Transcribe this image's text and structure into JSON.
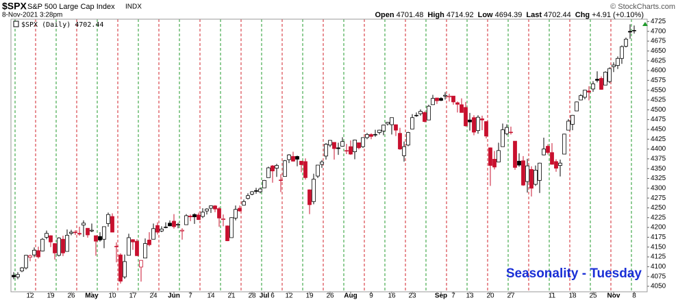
{
  "header": {
    "symbol": "$SPX",
    "name": "S&P 500 Large Cap Index",
    "exchange": "INDX",
    "date": "8-Nov-2021 3:28pm",
    "copyright": "© StockCharts.com",
    "stats": [
      {
        "label": "Open",
        "value": 4701.48
      },
      {
        "label": "High",
        "value": 4714.92
      },
      {
        "label": "Low",
        "value": 4694.39
      },
      {
        "label": "Last",
        "value": 4702.44
      },
      {
        "label": "Chg",
        "value": "+4.91 (+0.10%)"
      }
    ]
  },
  "chart_data": {
    "type": "candlestick",
    "legend": "$SPX (Daily) 4702.44",
    "annotation": "Seasonality - Tuesday",
    "up_color": "#000000",
    "down_color": "#c8102e",
    "ylim": [
      4036,
      4731
    ],
    "yticks": [
      4050,
      4075,
      4100,
      4125,
      4150,
      4175,
      4200,
      4225,
      4250,
      4275,
      4300,
      4325,
      4350,
      4375,
      4400,
      4425,
      4450,
      4475,
      4500,
      4525,
      4550,
      4575,
      4600,
      4625,
      4650,
      4675,
      4700,
      4725
    ],
    "categories": [
      null,
      null,
      null,
      null,
      "12",
      null,
      null,
      null,
      null,
      "19",
      null,
      null,
      null,
      null,
      "26",
      null,
      null,
      null,
      null,
      "May",
      null,
      null,
      null,
      null,
      "10",
      null,
      null,
      null,
      null,
      "17",
      null,
      null,
      null,
      null,
      "24",
      null,
      null,
      null,
      null,
      "Jun",
      null,
      null,
      null,
      "7",
      null,
      null,
      null,
      null,
      "14",
      null,
      null,
      null,
      null,
      "21",
      null,
      null,
      null,
      null,
      "28",
      null,
      null,
      "Jul",
      null,
      "6",
      null,
      null,
      null,
      "12",
      null,
      null,
      null,
      null,
      "19",
      null,
      null,
      null,
      null,
      "26",
      null,
      null,
      null,
      null,
      "Aug",
      null,
      null,
      null,
      null,
      "9",
      null,
      null,
      null,
      null,
      "16",
      null,
      null,
      null,
      null,
      "23",
      null,
      null,
      null,
      null,
      null,
      null,
      "Sep",
      null,
      null,
      "7",
      null,
      null,
      null,
      "13",
      null,
      null,
      null,
      null,
      "20",
      null,
      null,
      null,
      null,
      "27",
      null,
      null,
      null,
      null,
      null,
      null,
      null,
      null,
      null,
      "11",
      null,
      null,
      null,
      null,
      "18",
      null,
      null,
      null,
      null,
      "25",
      null,
      null,
      null,
      null,
      "Nov",
      null,
      null,
      null,
      null,
      "8"
    ],
    "ohlc": [
      [
        4078,
        4086,
        4068,
        4074
      ],
      [
        4074,
        4086,
        4068,
        4080
      ],
      [
        4089,
        4099,
        4086,
        4097
      ],
      [
        4097,
        4130,
        4093,
        4129
      ],
      [
        4124,
        4131,
        4114,
        4128
      ],
      [
        4130,
        4149,
        4124,
        4142
      ],
      [
        4141,
        4151,
        4121,
        4125
      ],
      [
        4140,
        4173,
        4139,
        4170
      ],
      [
        4175,
        4192,
        4170,
        4185
      ],
      [
        4179,
        4180,
        4150,
        4163
      ],
      [
        4159,
        4160,
        4118,
        4135
      ],
      [
        4129,
        4175,
        4126,
        4173
      ],
      [
        4170,
        4179,
        4127,
        4135
      ],
      [
        4139,
        4195,
        4139,
        4180
      ],
      [
        4185,
        4194,
        4180,
        4188
      ],
      [
        4188,
        4193,
        4181,
        4187
      ],
      [
        4185,
        4202,
        4179,
        4183
      ],
      [
        4206,
        4218,
        4176,
        4211
      ],
      [
        4198,
        4198,
        4174,
        4181
      ],
      [
        4191,
        4210,
        4188,
        4193
      ],
      [
        4179,
        4179,
        4128,
        4165
      ],
      [
        4177,
        4188,
        4164,
        4168
      ],
      [
        4170,
        4202,
        4147,
        4202
      ],
      [
        4210,
        4238,
        4202,
        4233
      ],
      [
        4228,
        4236,
        4188,
        4188
      ],
      [
        4151,
        4162,
        4111,
        4152
      ],
      [
        4130,
        4134,
        4057,
        4063
      ],
      [
        4074,
        4131,
        4069,
        4113
      ],
      [
        4129,
        4184,
        4129,
        4174
      ],
      [
        4169,
        4170,
        4143,
        4163
      ],
      [
        4165,
        4170,
        4127,
        4128
      ],
      [
        4099,
        4117,
        4062,
        4116
      ],
      [
        4122,
        4172,
        4122,
        4159
      ],
      [
        4168,
        4188,
        4152,
        4156
      ],
      [
        4170,
        4210,
        4170,
        4197
      ],
      [
        4205,
        4213,
        4182,
        4188
      ],
      [
        4191,
        4203,
        4188,
        4196
      ],
      [
        4201,
        4213,
        4198,
        4201
      ],
      [
        4211,
        4218,
        4203,
        4204
      ],
      [
        4216,
        4234,
        4197,
        4202
      ],
      [
        4206,
        4212,
        4198,
        4208
      ],
      [
        4191,
        4198,
        4169,
        4193
      ],
      [
        4207,
        4234,
        4207,
        4230
      ],
      [
        4229,
        4233,
        4216,
        4227
      ],
      [
        4233,
        4236,
        4209,
        4227
      ],
      [
        4232,
        4238,
        4219,
        4220
      ],
      [
        4228,
        4249,
        4224,
        4239
      ],
      [
        4242,
        4249,
        4233,
        4247
      ],
      [
        4249,
        4256,
        4237,
        4255
      ],
      [
        4255,
        4257,
        4239,
        4247
      ],
      [
        4248,
        4252,
        4202,
        4224
      ],
      [
        4220,
        4233,
        4203,
        4222
      ],
      [
        4204,
        4205,
        4165,
        4166
      ],
      [
        4174,
        4226,
        4174,
        4225
      ],
      [
        4224,
        4256,
        4218,
        4246
      ],
      [
        4249,
        4256,
        4240,
        4242
      ],
      [
        4257,
        4271,
        4257,
        4266
      ],
      [
        4274,
        4287,
        4271,
        4281
      ],
      [
        4285,
        4293,
        4282,
        4291
      ],
      [
        4294,
        4301,
        4286,
        4292
      ],
      [
        4291,
        4302,
        4287,
        4298
      ],
      [
        4301,
        4321,
        4301,
        4320
      ],
      [
        4327,
        4355,
        4327,
        4352
      ],
      [
        4357,
        4359,
        4314,
        4344
      ],
      [
        4351,
        4362,
        4329,
        4358
      ],
      [
        4321,
        4336,
        4290,
        4321
      ],
      [
        4330,
        4372,
        4330,
        4370
      ],
      [
        4373,
        4387,
        4364,
        4385
      ],
      [
        4381,
        4393,
        4368,
        4369
      ],
      [
        4381,
        4383,
        4356,
        4374
      ],
      [
        4369,
        4369,
        4341,
        4360
      ],
      [
        4368,
        4376,
        4322,
        4327
      ],
      [
        4296,
        4297,
        4234,
        4258
      ],
      [
        4266,
        4337,
        4259,
        4323
      ],
      [
        4331,
        4359,
        4326,
        4359
      ],
      [
        4361,
        4372,
        4352,
        4367
      ],
      [
        4382,
        4415,
        4373,
        4412
      ],
      [
        4410,
        4423,
        4405,
        4422
      ],
      [
        4417,
        4416,
        4373,
        4401
      ],
      [
        4403,
        4416,
        4385,
        4401
      ],
      [
        4407,
        4430,
        4406,
        4419
      ],
      [
        4396,
        4413,
        4387,
        4395
      ],
      [
        4406,
        4422,
        4385,
        4387
      ],
      [
        4393,
        4424,
        4374,
        4423
      ],
      [
        4416,
        4416,
        4399,
        4403
      ],
      [
        4406,
        4430,
        4403,
        4429
      ],
      [
        4429,
        4441,
        4425,
        4437
      ],
      [
        4437,
        4440,
        4425,
        4432
      ],
      [
        4436,
        4449,
        4431,
        4437
      ],
      [
        4442,
        4449,
        4437,
        4448
      ],
      [
        4446,
        4462,
        4435,
        4461
      ],
      [
        4464,
        4469,
        4460,
        4468
      ],
      [
        4462,
        4480,
        4437,
        4480
      ],
      [
        4462,
        4463,
        4433,
        4448
      ],
      [
        4440,
        4454,
        4398,
        4400
      ],
      [
        4383,
        4419,
        4368,
        4406
      ],
      [
        4410,
        4444,
        4407,
        4442
      ],
      [
        4451,
        4489,
        4451,
        4480
      ],
      [
        4485,
        4493,
        4482,
        4486
      ],
      [
        4490,
        4501,
        4485,
        4496
      ],
      [
        4493,
        4496,
        4468,
        4470
      ],
      [
        4474,
        4513,
        4474,
        4509
      ],
      [
        4513,
        4538,
        4513,
        4529
      ],
      [
        4530,
        4531,
        4515,
        4523
      ],
      [
        4529,
        4532,
        4522,
        4524
      ],
      [
        4535,
        4545,
        4526,
        4537
      ],
      [
        4533,
        4541,
        4521,
        4535
      ],
      [
        4535,
        4535,
        4513,
        4520
      ],
      [
        4518,
        4521,
        4493,
        4514
      ],
      [
        4513,
        4529,
        4493,
        4493
      ],
      [
        4506,
        4520,
        4457,
        4459
      ],
      [
        4474,
        4492,
        4447,
        4469
      ],
      [
        4480,
        4486,
        4435,
        4443
      ],
      [
        4447,
        4486,
        4439,
        4481
      ],
      [
        4477,
        4485,
        4448,
        4474
      ],
      [
        4470,
        4471,
        4427,
        4433
      ],
      [
        4403,
        4404,
        4306,
        4358
      ],
      [
        4374,
        4395,
        4348,
        4354
      ],
      [
        4367,
        4416,
        4367,
        4396
      ],
      [
        4406,
        4465,
        4406,
        4449
      ],
      [
        4439,
        4463,
        4435,
        4455
      ],
      [
        4443,
        4457,
        4437,
        4443
      ],
      [
        4420,
        4420,
        4347,
        4353
      ],
      [
        4369,
        4389,
        4355,
        4359
      ],
      [
        4370,
        4382,
        4306,
        4308
      ],
      [
        4317,
        4375,
        4289,
        4357
      ],
      [
        4348,
        4356,
        4279,
        4300
      ],
      [
        4310,
        4358,
        4306,
        4346
      ],
      [
        4320,
        4365,
        4288,
        4364
      ],
      [
        4385,
        4429,
        4384,
        4400
      ],
      [
        4407,
        4412,
        4386,
        4391
      ],
      [
        4391,
        4415,
        4360,
        4361
      ],
      [
        4368,
        4374,
        4342,
        4351
      ],
      [
        4358,
        4373,
        4330,
        4364
      ],
      [
        4387,
        4439,
        4387,
        4438
      ],
      [
        4448,
        4476,
        4448,
        4471
      ],
      [
        4463,
        4487,
        4448,
        4486
      ],
      [
        4497,
        4521,
        4497,
        4520
      ],
      [
        4525,
        4540,
        4524,
        4536
      ],
      [
        4532,
        4551,
        4527,
        4550
      ],
      [
        4548,
        4560,
        4524,
        4545
      ],
      [
        4553,
        4573,
        4546,
        4566
      ],
      [
        4578,
        4598,
        4570,
        4575
      ],
      [
        4580,
        4585,
        4551,
        4552
      ],
      [
        4563,
        4598,
        4563,
        4596
      ],
      [
        4572,
        4608,
        4568,
        4605
      ],
      [
        4610,
        4621,
        4596,
        4614
      ],
      [
        4613,
        4636,
        4604,
        4631
      ],
      [
        4631,
        4664,
        4617,
        4661
      ],
      [
        4662,
        4684,
        4659,
        4680
      ],
      [
        4700,
        4718,
        4681,
        4698
      ],
      [
        4701.48,
        4714.92,
        4694.39,
        4702.44
      ]
    ]
  }
}
